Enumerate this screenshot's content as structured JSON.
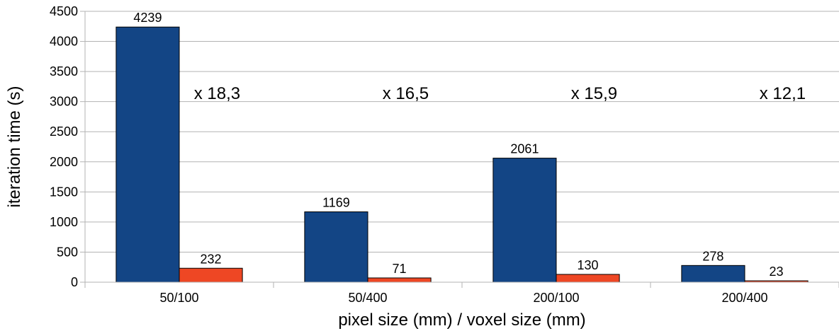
{
  "chart_data": {
    "type": "bar",
    "categories": [
      "50/100",
      "50/400",
      "200/100",
      "200/400"
    ],
    "series": [
      {
        "values": [
          4239,
          1169,
          2061,
          278
        ],
        "color": "#134585"
      },
      {
        "values": [
          232,
          71,
          130,
          23
        ],
        "color": "#ee4724"
      }
    ],
    "ratio_labels": [
      "x 18,3",
      "x 16,5",
      "x 15,9",
      "x 12,1"
    ],
    "xlabel": "pixel size (mm) / voxel size (mm)",
    "ylabel": "iteration time (s)",
    "ylim": [
      0,
      4500
    ],
    "yticks": [
      0,
      500,
      1000,
      1500,
      2000,
      2500,
      3000,
      3500,
      4000,
      4500
    ],
    "grid": true,
    "grid_color": "#b3b3b3",
    "legend": "none"
  }
}
